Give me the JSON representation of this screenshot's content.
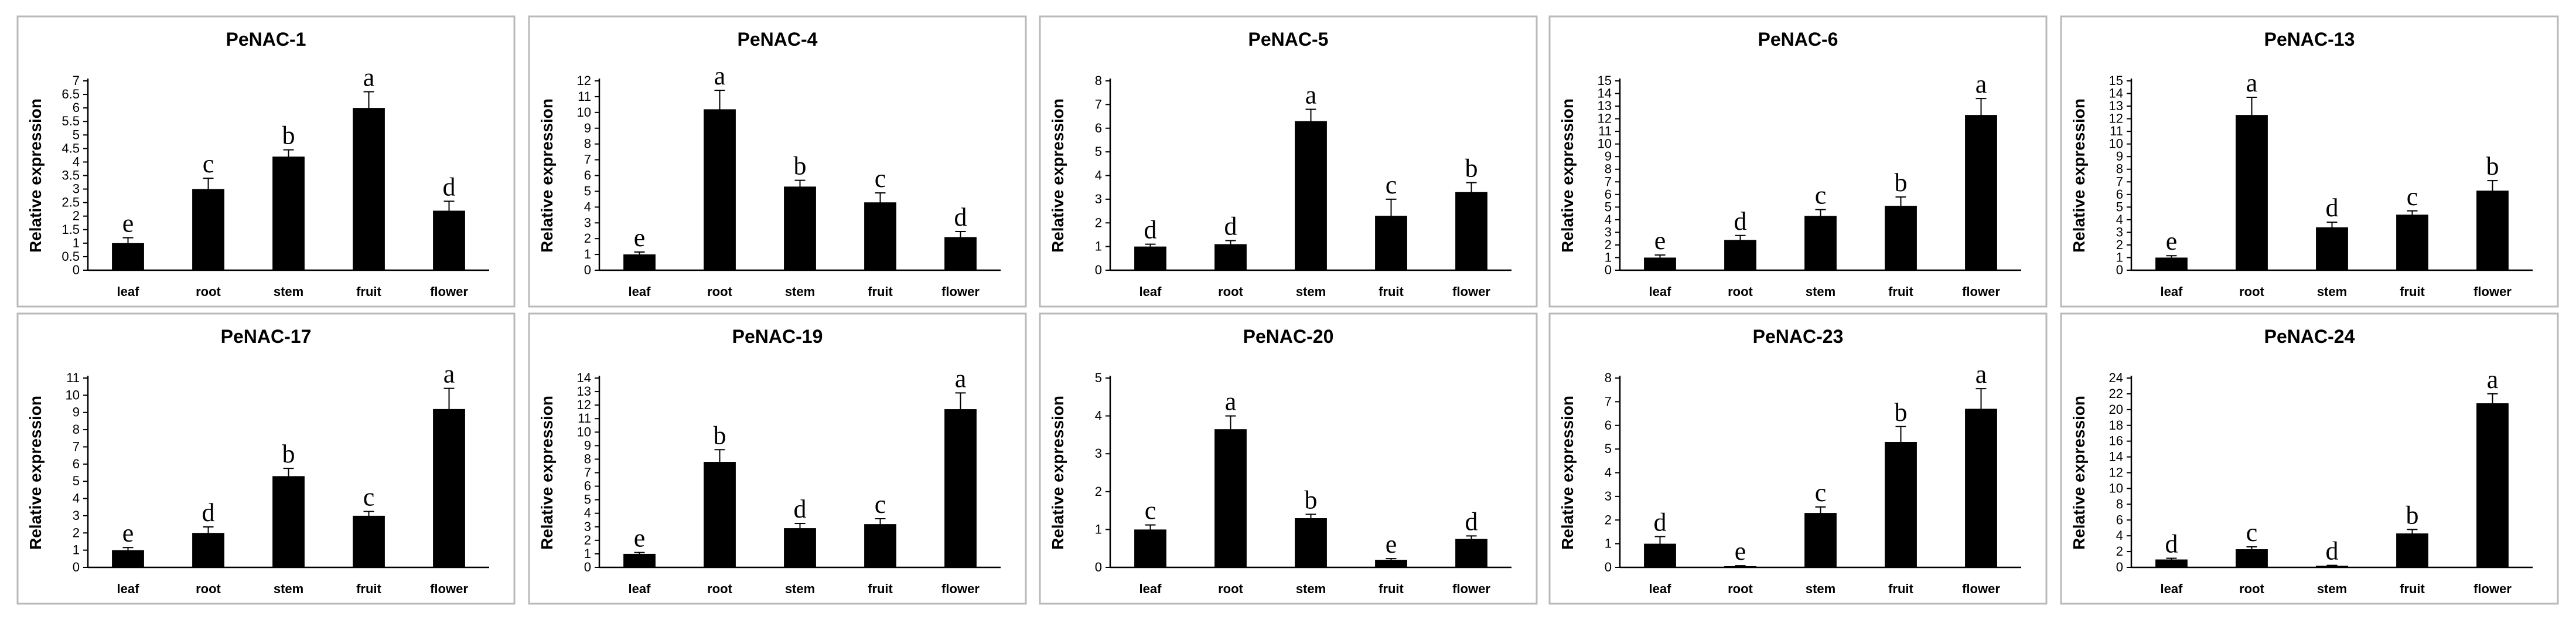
{
  "chart_data": [
    {
      "type": "bar",
      "title": "PeNAC-1",
      "ylabel": "Relative expression",
      "categories": [
        "leaf",
        "root",
        "stem",
        "fruit",
        "flower"
      ],
      "values": [
        1,
        3.0,
        4.2,
        6.0,
        2.2
      ],
      "errors": [
        0.2,
        0.4,
        0.25,
        0.6,
        0.35
      ],
      "letters": [
        "e",
        "c",
        "b",
        "a",
        "d"
      ],
      "ylim": [
        0,
        7
      ],
      "yticks": [
        "0",
        "0.5",
        "1",
        "1.5",
        "2",
        "2.5",
        "3",
        "3.5",
        "4",
        "4.5",
        "5",
        "5.5",
        "6",
        "6.5",
        "7"
      ]
    },
    {
      "type": "bar",
      "title": "PeNAC-4",
      "ylabel": "Relative expression",
      "categories": [
        "leaf",
        "root",
        "stem",
        "fruit",
        "flower"
      ],
      "values": [
        1,
        10.2,
        5.3,
        4.3,
        2.1
      ],
      "errors": [
        0.15,
        1.2,
        0.4,
        0.6,
        0.35
      ],
      "letters": [
        "e",
        "a",
        "b",
        "c",
        "d"
      ],
      "ylim": [
        0,
        12
      ],
      "yticks": [
        "0",
        "1",
        "2",
        "3",
        "4",
        "5",
        "6",
        "7",
        "8",
        "9",
        "10",
        "11",
        "12"
      ]
    },
    {
      "type": "bar",
      "title": "PeNAC-5",
      "ylabel": "Relative expression",
      "categories": [
        "leaf",
        "root",
        "stem",
        "fruit",
        "flower"
      ],
      "values": [
        1,
        1.1,
        6.3,
        2.3,
        3.3
      ],
      "errors": [
        0.1,
        0.15,
        0.5,
        0.7,
        0.4
      ],
      "letters": [
        "d",
        "d",
        "a",
        "c",
        "b"
      ],
      "ylim": [
        0,
        8
      ],
      "yticks": [
        "0",
        "1",
        "2",
        "3",
        "4",
        "5",
        "6",
        "7",
        "8"
      ]
    },
    {
      "type": "bar",
      "title": "PeNAC-6",
      "ylabel": "Relative expression",
      "categories": [
        "leaf",
        "root",
        "stem",
        "fruit",
        "flower"
      ],
      "values": [
        1,
        2.4,
        4.3,
        5.1,
        12.3
      ],
      "errors": [
        0.2,
        0.35,
        0.5,
        0.7,
        1.3
      ],
      "letters": [
        "e",
        "d",
        "c",
        "b",
        "a"
      ],
      "ylim": [
        0,
        15
      ],
      "yticks": [
        "0",
        "1",
        "2",
        "3",
        "4",
        "5",
        "6",
        "7",
        "8",
        "9",
        "10",
        "11",
        "12",
        "13",
        "14",
        "15"
      ]
    },
    {
      "type": "bar",
      "title": "PeNAC-13",
      "ylabel": "Relative expression",
      "categories": [
        "leaf",
        "root",
        "stem",
        "fruit",
        "flower"
      ],
      "values": [
        1,
        12.3,
        3.4,
        4.4,
        6.3
      ],
      "errors": [
        0.15,
        1.4,
        0.4,
        0.3,
        0.8
      ],
      "letters": [
        "e",
        "a",
        "d",
        "c",
        "b"
      ],
      "ylim": [
        0,
        15
      ],
      "yticks": [
        "0",
        "1",
        "2",
        "3",
        "4",
        "5",
        "6",
        "7",
        "8",
        "9",
        "10",
        "11",
        "12",
        "13",
        "14",
        "15"
      ]
    },
    {
      "type": "bar",
      "title": "PeNAC-17",
      "ylabel": "Relative expression",
      "categories": [
        "leaf",
        "root",
        "stem",
        "fruit",
        "flower"
      ],
      "values": [
        1,
        2.0,
        5.3,
        3.0,
        9.2
      ],
      "errors": [
        0.15,
        0.35,
        0.45,
        0.25,
        1.2
      ],
      "letters": [
        "e",
        "d",
        "b",
        "c",
        "a"
      ],
      "ylim": [
        0,
        11
      ],
      "yticks": [
        "0",
        "1",
        "2",
        "3",
        "4",
        "5",
        "6",
        "7",
        "8",
        "9",
        "10",
        "11"
      ]
    },
    {
      "type": "bar",
      "title": "PeNAC-19",
      "ylabel": "Relative expression",
      "categories": [
        "leaf",
        "root",
        "stem",
        "fruit",
        "flower"
      ],
      "values": [
        1,
        7.8,
        2.9,
        3.2,
        11.7
      ],
      "errors": [
        0.1,
        0.9,
        0.35,
        0.4,
        1.2
      ],
      "letters": [
        "e",
        "b",
        "d",
        "c",
        "a"
      ],
      "ylim": [
        0,
        14
      ],
      "yticks": [
        "0",
        "1",
        "2",
        "3",
        "4",
        "5",
        "6",
        "7",
        "8",
        "9",
        "10",
        "11",
        "12",
        "13",
        "14"
      ]
    },
    {
      "type": "bar",
      "title": "PeNAC-20",
      "ylabel": "Relative expression",
      "categories": [
        "leaf",
        "root",
        "stem",
        "fruit",
        "flower"
      ],
      "values": [
        1,
        3.65,
        1.3,
        0.2,
        0.75
      ],
      "errors": [
        0.12,
        0.35,
        0.1,
        0.03,
        0.08
      ],
      "letters": [
        "c",
        "a",
        "b",
        "e",
        "d"
      ],
      "ylim": [
        0,
        5
      ],
      "yticks": [
        "0",
        "1",
        "2",
        "3",
        "4",
        "5"
      ]
    },
    {
      "type": "bar",
      "title": "PeNAC-23",
      "ylabel": "Relative expression",
      "categories": [
        "leaf",
        "root",
        "stem",
        "fruit",
        "flower"
      ],
      "values": [
        1,
        0.05,
        2.3,
        5.3,
        6.7
      ],
      "errors": [
        0.3,
        0.02,
        0.25,
        0.65,
        0.85
      ],
      "letters": [
        "d",
        "e",
        "c",
        "b",
        "a"
      ],
      "ylim": [
        0,
        8
      ],
      "yticks": [
        "0",
        "1",
        "2",
        "3",
        "4",
        "5",
        "6",
        "7",
        "8"
      ]
    },
    {
      "type": "bar",
      "title": "PeNAC-24",
      "ylabel": "Relative expression",
      "categories": [
        "leaf",
        "root",
        "stem",
        "fruit",
        "flower"
      ],
      "values": [
        1,
        2.3,
        0.2,
        4.3,
        20.8
      ],
      "errors": [
        0.15,
        0.3,
        0.05,
        0.5,
        1.2
      ],
      "letters": [
        "d",
        "c",
        "d",
        "b",
        "a"
      ],
      "ylim": [
        0,
        24
      ],
      "yticks": [
        "0",
        "2",
        "4",
        "6",
        "8",
        "10",
        "12",
        "14",
        "16",
        "18",
        "20",
        "22",
        "24"
      ]
    }
  ]
}
